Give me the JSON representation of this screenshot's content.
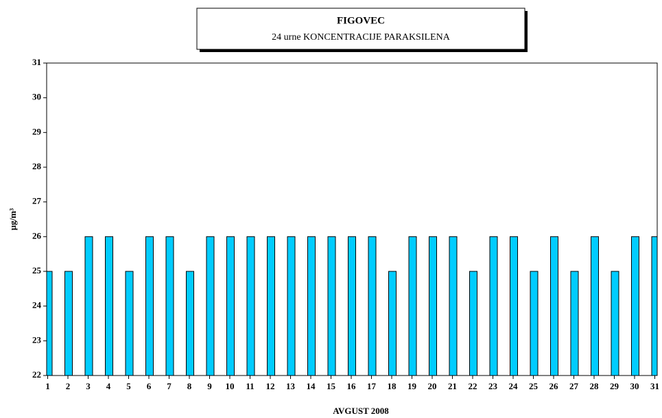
{
  "chart_data": {
    "type": "bar",
    "title": "FIGOVEC",
    "subtitle": "24 urne KONCENTRACIJE PARAKSILENA",
    "x_label": "AVGUST 2008",
    "y_label": "µg/m³",
    "categories": [
      "1",
      "2",
      "3",
      "4",
      "5",
      "6",
      "7",
      "8",
      "9",
      "10",
      "11",
      "12",
      "13",
      "14",
      "15",
      "16",
      "17",
      "18",
      "19",
      "20",
      "21",
      "22",
      "23",
      "24",
      "25",
      "26",
      "27",
      "28",
      "29",
      "30",
      "31"
    ],
    "values": [
      25,
      25,
      26,
      26,
      25,
      26,
      26,
      25,
      26,
      26,
      26,
      26,
      26,
      26,
      26,
      26,
      26,
      25,
      26,
      26,
      26,
      25,
      26,
      26,
      25,
      26,
      25,
      26,
      25,
      26,
      26
    ],
    "color": "#00ccff",
    "ylim": [
      22,
      31
    ],
    "yticks": [
      22,
      23,
      24,
      25,
      26,
      27,
      28,
      29,
      30,
      31
    ],
    "grid": false
  }
}
